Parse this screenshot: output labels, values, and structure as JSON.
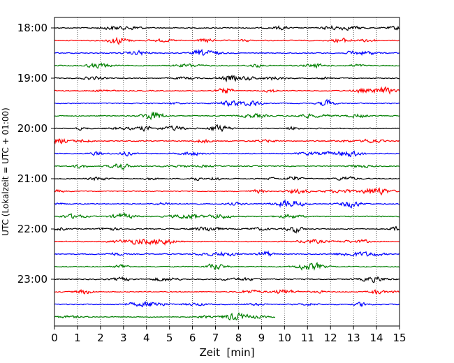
{
  "chart_data": {
    "type": "line",
    "title": "",
    "xlabel": "Zeit  [min]",
    "ylabel": "UTC (Lokalzeit = UTC + 01:00)",
    "xlim": [
      0,
      15
    ],
    "x_ticks": [
      "0",
      "1",
      "2",
      "3",
      "4",
      "5",
      "6",
      "7",
      "8",
      "9",
      "10",
      "11",
      "12",
      "13",
      "14",
      "15"
    ],
    "y_ticks": [
      "18:00",
      "19:00",
      "20:00",
      "21:00",
      "22:00",
      "23:00"
    ],
    "vertical_grid": true,
    "grid_style": "dotted",
    "trace_interval_min": 15,
    "trace_colors": [
      "#000000",
      "#ff0000",
      "#0000ff",
      "#007f00"
    ],
    "traces": [
      {
        "start": "18:00",
        "end_min": 15
      },
      {
        "start": "18:15",
        "end_min": 15
      },
      {
        "start": "18:30",
        "end_min": 15
      },
      {
        "start": "18:45",
        "end_min": 15
      },
      {
        "start": "19:00",
        "end_min": 15
      },
      {
        "start": "19:15",
        "end_min": 15
      },
      {
        "start": "19:30",
        "end_min": 15
      },
      {
        "start": "19:45",
        "end_min": 15
      },
      {
        "start": "20:00",
        "end_min": 15
      },
      {
        "start": "20:15",
        "end_min": 15
      },
      {
        "start": "20:30",
        "end_min": 15
      },
      {
        "start": "20:45",
        "end_min": 15
      },
      {
        "start": "21:00",
        "end_min": 15
      },
      {
        "start": "21:15",
        "end_min": 15
      },
      {
        "start": "21:30",
        "end_min": 15
      },
      {
        "start": "21:45",
        "end_min": 15
      },
      {
        "start": "22:00",
        "end_min": 15
      },
      {
        "start": "22:15",
        "end_min": 15
      },
      {
        "start": "22:30",
        "end_min": 15
      },
      {
        "start": "22:45",
        "end_min": 15
      },
      {
        "start": "23:00",
        "end_min": 15
      },
      {
        "start": "23:15",
        "end_min": 15
      },
      {
        "start": "23:30",
        "end_min": 15
      },
      {
        "start": "23:45",
        "end_min": 9.6
      }
    ]
  }
}
